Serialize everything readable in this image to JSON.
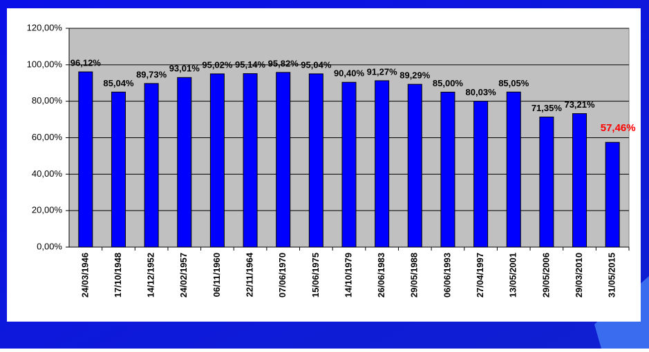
{
  "chart_data": {
    "type": "bar",
    "categories": [
      "24/03/1946",
      "17/10/1948",
      "14/12/1952",
      "24/02/1957",
      "06/11/1960",
      "22/11/1964",
      "07/06/1970",
      "15/06/1975",
      "14/10/1979",
      "26/06/1983",
      "29/05/1988",
      "06/06/1993",
      "27/04/1997",
      "13/05/2001",
      "29/05/2006",
      "29/03/2010",
      "31/05/2015"
    ],
    "values": [
      96.12,
      85.04,
      89.73,
      93.01,
      95.02,
      95.14,
      95.82,
      95.04,
      90.4,
      91.27,
      89.29,
      85.0,
      80.03,
      85.05,
      71.35,
      73.21,
      57.46
    ],
    "value_labels": [
      "96,12%",
      "85,04%",
      "89,73%",
      "93,01%",
      "95,02%",
      "95,14%",
      "95,82%",
      "95,04%",
      "90,40%",
      "91,27%",
      "89,29%",
      "85,00%",
      "80,03%",
      "85,05%",
      "71,35%",
      "73,21%",
      "57,46%"
    ],
    "value_label_colors": [
      "#000000",
      "#000000",
      "#000000",
      "#000000",
      "#000000",
      "#000000",
      "#000000",
      "#000000",
      "#000000",
      "#000000",
      "#000000",
      "#000000",
      "#000000",
      "#000000",
      "#000000",
      "#000000",
      "#ff0000"
    ],
    "color": "#0000ff",
    "ylim": [
      0,
      120
    ],
    "yticks": [
      {
        "value": 0,
        "label": "0,00%"
      },
      {
        "value": 20,
        "label": "20,00%"
      },
      {
        "value": 40,
        "label": "40,00%"
      },
      {
        "value": 60,
        "label": "60,00%"
      },
      {
        "value": 80,
        "label": "80,00%"
      },
      {
        "value": 100,
        "label": "100,00%"
      },
      {
        "value": 120,
        "label": "120,00%"
      }
    ],
    "grid": true
  }
}
